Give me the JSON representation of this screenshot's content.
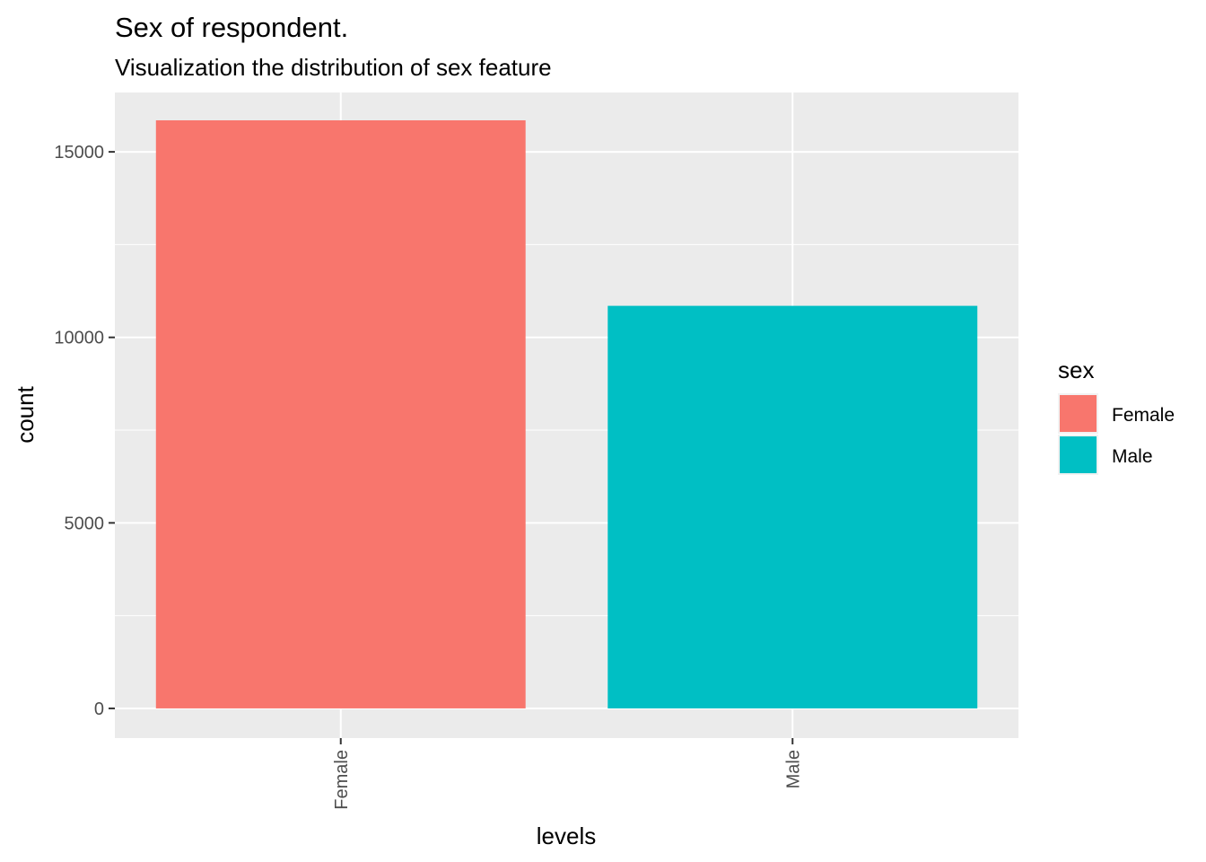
{
  "chart_data": {
    "type": "bar",
    "title": "Sex of respondent.",
    "subtitle": "Visualization the distribution of sex feature",
    "xlabel": "levels",
    "ylabel": "count",
    "categories": [
      "Female",
      "Male"
    ],
    "values": [
      15850,
      10850
    ],
    "colors": [
      "#F8766D",
      "#00BFC4"
    ],
    "ylim": [
      -800,
      16600
    ],
    "yticks": [
      0,
      5000,
      10000,
      15000
    ],
    "ytick_labels": [
      "0",
      "5000",
      "10000",
      "15000"
    ],
    "y_minor_ticks": [
      2500,
      7500,
      12500
    ],
    "grid": true,
    "legend": {
      "title": "sex",
      "position": "right",
      "entries": [
        {
          "label": "Female",
          "color": "#F8766D"
        },
        {
          "label": "Male",
          "color": "#00BFC4"
        }
      ]
    },
    "panel_background": "#EBEBEB",
    "grid_color": "#FFFFFF"
  }
}
